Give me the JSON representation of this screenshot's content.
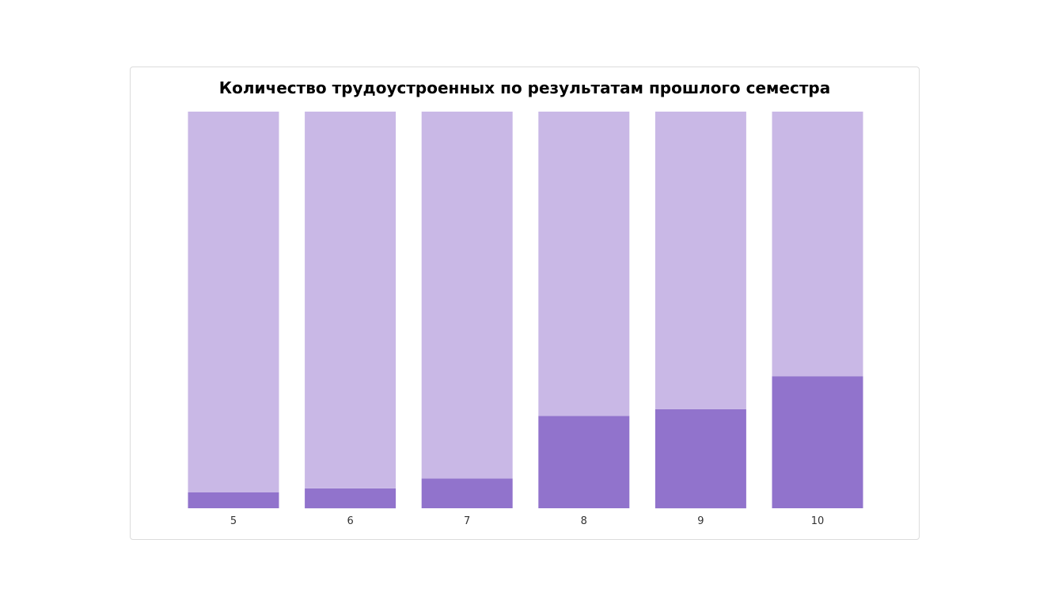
{
  "chart_data": {
    "type": "bar",
    "stacked": true,
    "normalized": true,
    "title": "Количество трудоустроенных по результатам прошлого семестра",
    "xlabel": "",
    "ylabel": "",
    "categories": [
      "5",
      "6",
      "7",
      "8",
      "9",
      "10"
    ],
    "series": [
      {
        "values": [
          0.04,
          0.05,
          0.075,
          0.233,
          0.25,
          0.333
        ],
        "color": "#9173cc"
      },
      {
        "values": [
          0.96,
          0.95,
          0.925,
          0.767,
          0.75,
          0.667
        ],
        "color": "#c9b8e6"
      }
    ],
    "ylim": [
      0,
      1
    ],
    "grid": false,
    "legend": "none"
  }
}
